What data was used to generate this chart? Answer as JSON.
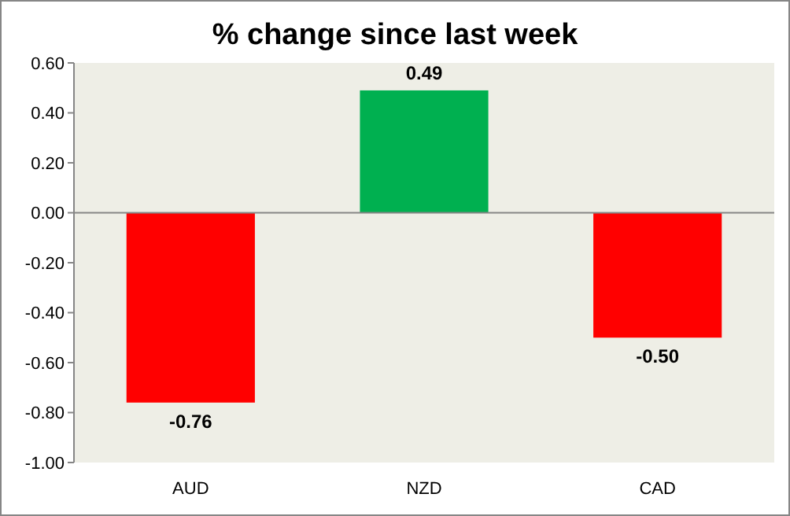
{
  "chart_data": {
    "type": "bar",
    "title": "% change since last week",
    "categories": [
      "AUD",
      "NZD",
      "CAD"
    ],
    "values": [
      -0.76,
      0.49,
      -0.5
    ],
    "colors": [
      "#ff0000",
      "#00b050",
      "#ff0000"
    ],
    "ylim": [
      -1,
      0.6
    ],
    "yticks": [
      {
        "value": -1,
        "label": "-1.00"
      },
      {
        "value": -0.8,
        "label": "-0.80"
      },
      {
        "value": -0.6,
        "label": "-0.60"
      },
      {
        "value": -0.4,
        "label": "-0.40"
      },
      {
        "value": -0.2,
        "label": "-0.20"
      },
      {
        "value": 0,
        "label": "0.00"
      },
      {
        "value": 0.2,
        "label": "0.20"
      },
      {
        "value": 0.4,
        "label": "0.40"
      },
      {
        "value": 0.6,
        "label": "0.60"
      }
    ],
    "value_labels": [
      "-0.76",
      "0.49",
      "-0.50"
    ]
  }
}
